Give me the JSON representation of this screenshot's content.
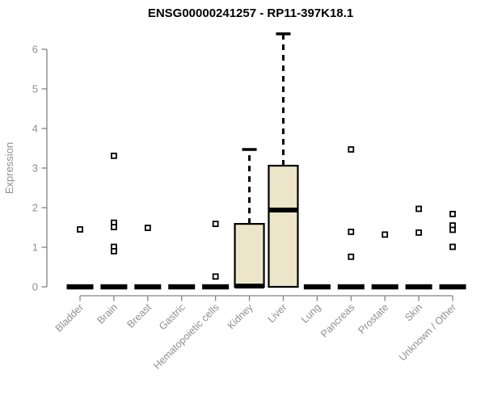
{
  "chart_data": {
    "type": "boxplot",
    "title": "ENSG00000241257 - RP11-397K18.1",
    "ylabel": "Expression",
    "ylim": [
      0,
      6.5
    ],
    "yticks": [
      0,
      1,
      2,
      3,
      4,
      5,
      6
    ],
    "grid": false,
    "legend": false,
    "categories": [
      "Bladder",
      "Brain",
      "Breast",
      "Gastric",
      "Hematopoietic cells",
      "Kidney",
      "Liver",
      "Lung",
      "Pancreas",
      "Prostate",
      "Skin",
      "Unknown / Other"
    ],
    "boxes": [
      {
        "category": "Bladder",
        "q1": 0,
        "median": 0,
        "q3": 0,
        "whisker_low": 0,
        "whisker_high": 0,
        "outliers": [
          1.45
        ]
      },
      {
        "category": "Brain",
        "q1": 0,
        "median": 0,
        "q3": 0,
        "whisker_low": 0,
        "whisker_high": 0,
        "outliers": [
          3.31,
          1.62,
          1.51,
          1.01,
          0.9
        ]
      },
      {
        "category": "Breast",
        "q1": 0,
        "median": 0,
        "q3": 0,
        "whisker_low": 0,
        "whisker_high": 0,
        "outliers": [
          1.49
        ]
      },
      {
        "category": "Gastric",
        "q1": 0,
        "median": 0,
        "q3": 0,
        "whisker_low": 0,
        "whisker_high": 0,
        "outliers": []
      },
      {
        "category": "Hematopoietic cells",
        "q1": 0,
        "median": 0,
        "q3": 0,
        "whisker_low": 0,
        "whisker_high": 0,
        "outliers": [
          1.59,
          0.26
        ]
      },
      {
        "category": "Kidney",
        "q1": 0,
        "median": 0.02,
        "q3": 1.59,
        "whisker_low": 0,
        "whisker_high": 3.47,
        "outliers": []
      },
      {
        "category": "Liver",
        "q1": 0,
        "median": 1.94,
        "q3": 3.06,
        "whisker_low": 0,
        "whisker_high": 6.39,
        "outliers": []
      },
      {
        "category": "Lung",
        "q1": 0,
        "median": 0,
        "q3": 0,
        "whisker_low": 0,
        "whisker_high": 0,
        "outliers": []
      },
      {
        "category": "Pancreas",
        "q1": 0,
        "median": 0,
        "q3": 0,
        "whisker_low": 0,
        "whisker_high": 0,
        "outliers": [
          3.47,
          1.39,
          0.76
        ]
      },
      {
        "category": "Prostate",
        "q1": 0,
        "median": 0,
        "q3": 0,
        "whisker_low": 0,
        "whisker_high": 0,
        "outliers": [
          1.32
        ]
      },
      {
        "category": "Skin",
        "q1": 0,
        "median": 0,
        "q3": 0,
        "whisker_low": 0,
        "whisker_high": 0,
        "outliers": [
          1.97,
          1.37
        ]
      },
      {
        "category": "Unknown / Other",
        "q1": 0,
        "median": 0,
        "q3": 0,
        "whisker_low": 0,
        "whisker_high": 0,
        "outliers": [
          1.84,
          1.55,
          1.44,
          1.01
        ]
      }
    ],
    "colors": {
      "background": "#ffffff",
      "box_fill": "#EDE5C9",
      "box_stroke": "#000000",
      "median": "#000000",
      "whisker": "#000000",
      "outlier_stroke": "#000000",
      "outlier_fill": "#ffffff",
      "axis": "#848484",
      "tick_label": "#8f8f8f",
      "title": "#000000"
    }
  }
}
